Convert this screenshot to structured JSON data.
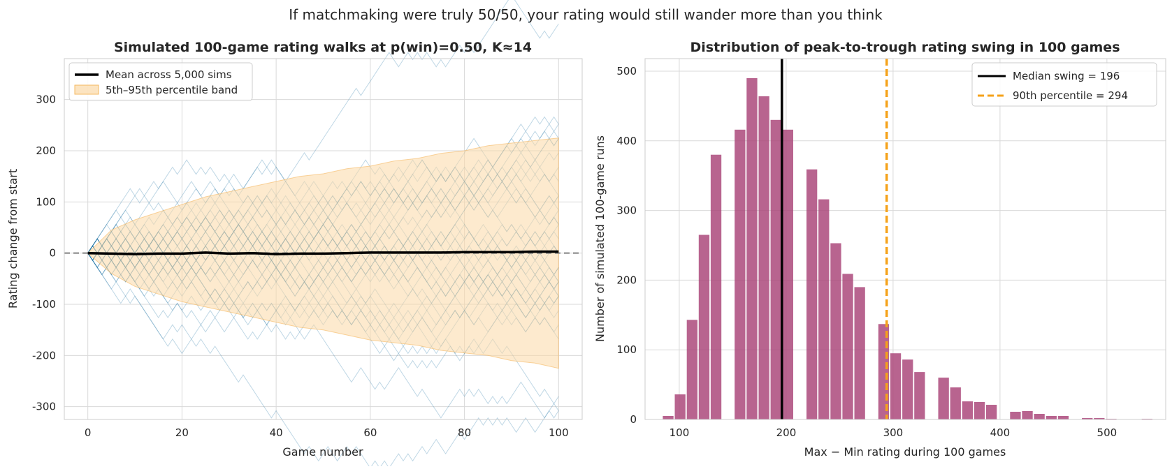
{
  "suptitle": "If matchmaking were truly 50/50, your rating would still wander more than you think",
  "chart_data": [
    {
      "type": "line",
      "title": "Simulated 100-game rating walks at p(win)=0.50, K≈14",
      "xlabel": "Game number",
      "ylabel": "Rating change from start",
      "xlim": [
        -5,
        105
      ],
      "ylim": [
        -325,
        380
      ],
      "xticks": [
        "0",
        "20",
        "40",
        "60",
        "80",
        "100"
      ],
      "yticks": [
        "-300",
        "-200",
        "-100",
        "0",
        "100",
        "200",
        "300"
      ],
      "grid": true,
      "legend_position": "upper-left",
      "step": 14,
      "baseline": 0,
      "colors": {
        "walk": "#2b7ba8",
        "band": "#fbd9a6",
        "band_edge": "#f5b860",
        "mean": "#000000",
        "baseline": "#808080"
      },
      "mean_series": {
        "name": "Mean across 5,000 sims",
        "x": [
          0,
          5,
          10,
          15,
          20,
          25,
          30,
          35,
          40,
          45,
          50,
          55,
          60,
          65,
          70,
          75,
          80,
          85,
          90,
          95,
          100
        ],
        "y": [
          0,
          -1,
          -2,
          -1,
          -1,
          1,
          -1,
          0,
          -2,
          -1,
          -1,
          0,
          1,
          1,
          1,
          1,
          2,
          2,
          2,
          3,
          3
        ]
      },
      "band": {
        "name": "5th–95th percentile band",
        "x": [
          0,
          5,
          10,
          15,
          20,
          25,
          30,
          35,
          40,
          45,
          50,
          55,
          60,
          65,
          70,
          75,
          80,
          85,
          90,
          95,
          100
        ],
        "low": [
          0,
          -40,
          -65,
          -80,
          -95,
          -105,
          -115,
          -125,
          -135,
          -145,
          -150,
          -160,
          -170,
          -175,
          -180,
          -190,
          -195,
          -200,
          -210,
          -215,
          -225
        ],
        "high": [
          0,
          45,
          65,
          80,
          95,
          110,
          120,
          130,
          140,
          150,
          155,
          165,
          170,
          180,
          185,
          195,
          200,
          210,
          215,
          220,
          225
        ]
      },
      "sample_walk_count": 40
    },
    {
      "type": "bar",
      "title": "Distribution of peak-to-trough rating swing in 100 games",
      "xlabel": "Max − Min rating during 100 games",
      "ylabel": "Number of simulated 100-game runs",
      "xlim": [
        68,
        555
      ],
      "ylim": [
        0,
        518
      ],
      "xticks": [
        "100",
        "200",
        "300",
        "400",
        "500"
      ],
      "yticks": [
        "0",
        "100",
        "200",
        "300",
        "400",
        "500"
      ],
      "grid": true,
      "legend_position": "upper-right",
      "bin_width": 11.2,
      "colors": {
        "bar": "#a84276",
        "median": "#000000",
        "p90": "#f5a21a"
      },
      "bins": [
        {
          "x": 84,
          "count": 5
        },
        {
          "x": 95.2,
          "count": 36
        },
        {
          "x": 106.4,
          "count": 143
        },
        {
          "x": 117.6,
          "count": 265
        },
        {
          "x": 128.8,
          "count": 380
        },
        {
          "x": 151.2,
          "count": 416
        },
        {
          "x": 162.4,
          "count": 490
        },
        {
          "x": 173.6,
          "count": 464
        },
        {
          "x": 184.8,
          "count": 430
        },
        {
          "x": 196,
          "count": 416
        },
        {
          "x": 218.4,
          "count": 359
        },
        {
          "x": 229.6,
          "count": 316
        },
        {
          "x": 240.8,
          "count": 253
        },
        {
          "x": 252,
          "count": 209
        },
        {
          "x": 263.2,
          "count": 190
        },
        {
          "x": 285.6,
          "count": 137
        },
        {
          "x": 296.8,
          "count": 95
        },
        {
          "x": 308,
          "count": 86
        },
        {
          "x": 319.2,
          "count": 68
        },
        {
          "x": 341.6,
          "count": 60
        },
        {
          "x": 352.8,
          "count": 46
        },
        {
          "x": 364,
          "count": 26
        },
        {
          "x": 375.2,
          "count": 25
        },
        {
          "x": 386.4,
          "count": 21
        },
        {
          "x": 408.8,
          "count": 11
        },
        {
          "x": 420,
          "count": 12
        },
        {
          "x": 431.2,
          "count": 8
        },
        {
          "x": 442.4,
          "count": 5
        },
        {
          "x": 453.6,
          "count": 5
        },
        {
          "x": 476,
          "count": 2
        },
        {
          "x": 487.2,
          "count": 2
        },
        {
          "x": 498.4,
          "count": 1
        },
        {
          "x": 532,
          "count": 1
        }
      ],
      "median": {
        "value": 196,
        "label": "Median swing = 196"
      },
      "p90": {
        "value": 294,
        "label": "90th percentile = 294"
      }
    }
  ]
}
